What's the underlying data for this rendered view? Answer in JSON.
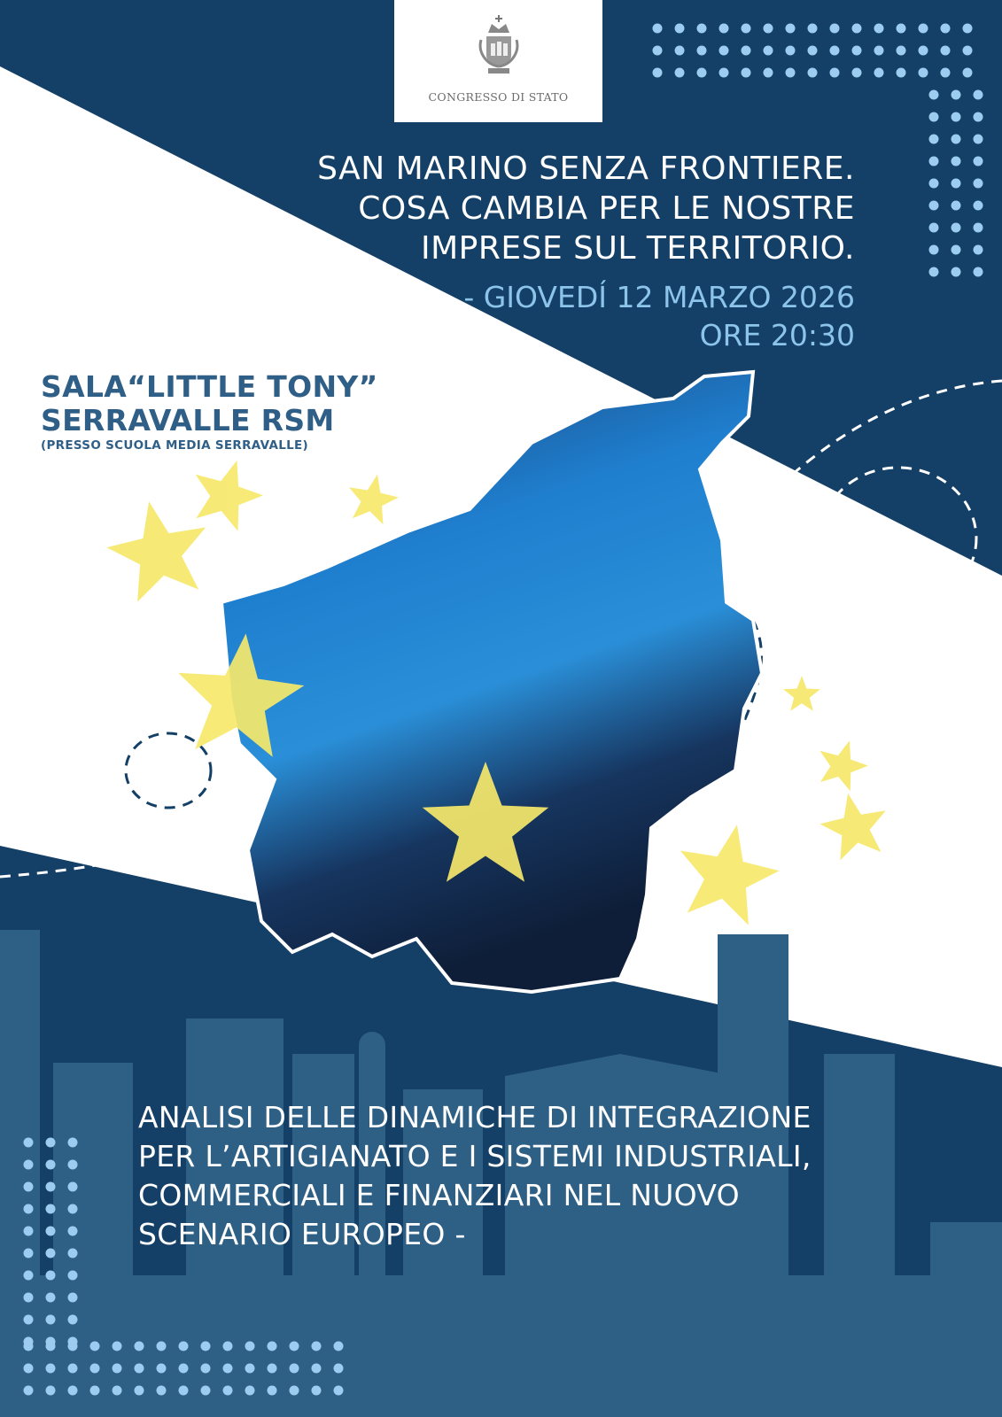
{
  "header": {
    "organization": "CONGRESSO DI STATO"
  },
  "event": {
    "title_lines": [
      "SAN MARINO SENZA FRONTIERE.",
      "COSA CAMBIA PER LE NOSTRE",
      "IMPRESE SUL TERRITORIO."
    ],
    "date": "- GIOVEDÍ 12 MARZO 2026",
    "time": "ORE 20:30"
  },
  "venue": {
    "name": "SALA“LITTLE TONY”",
    "place": "SERRAVALLE RSM",
    "note": "(PRESSO SCUOLA MEDIA SERRAVALLE)"
  },
  "description_lines": [
    "ANALISI DELLE DINAMICHE DI INTEGRAZIONE",
    "PER L’ARTIGIANATO E I SISTEMI INDUSTRIALI,",
    "COMMERCIALI E FINANZIARI NEL NUOVO",
    "SCENARIO EUROPEO -"
  ],
  "colors": {
    "navy": "#143f66",
    "skyline": "#2e5f85",
    "accent_light_blue": "#8cc4ea",
    "star_yellow": "#f6e86a",
    "venue_blue": "#2f5f87"
  }
}
